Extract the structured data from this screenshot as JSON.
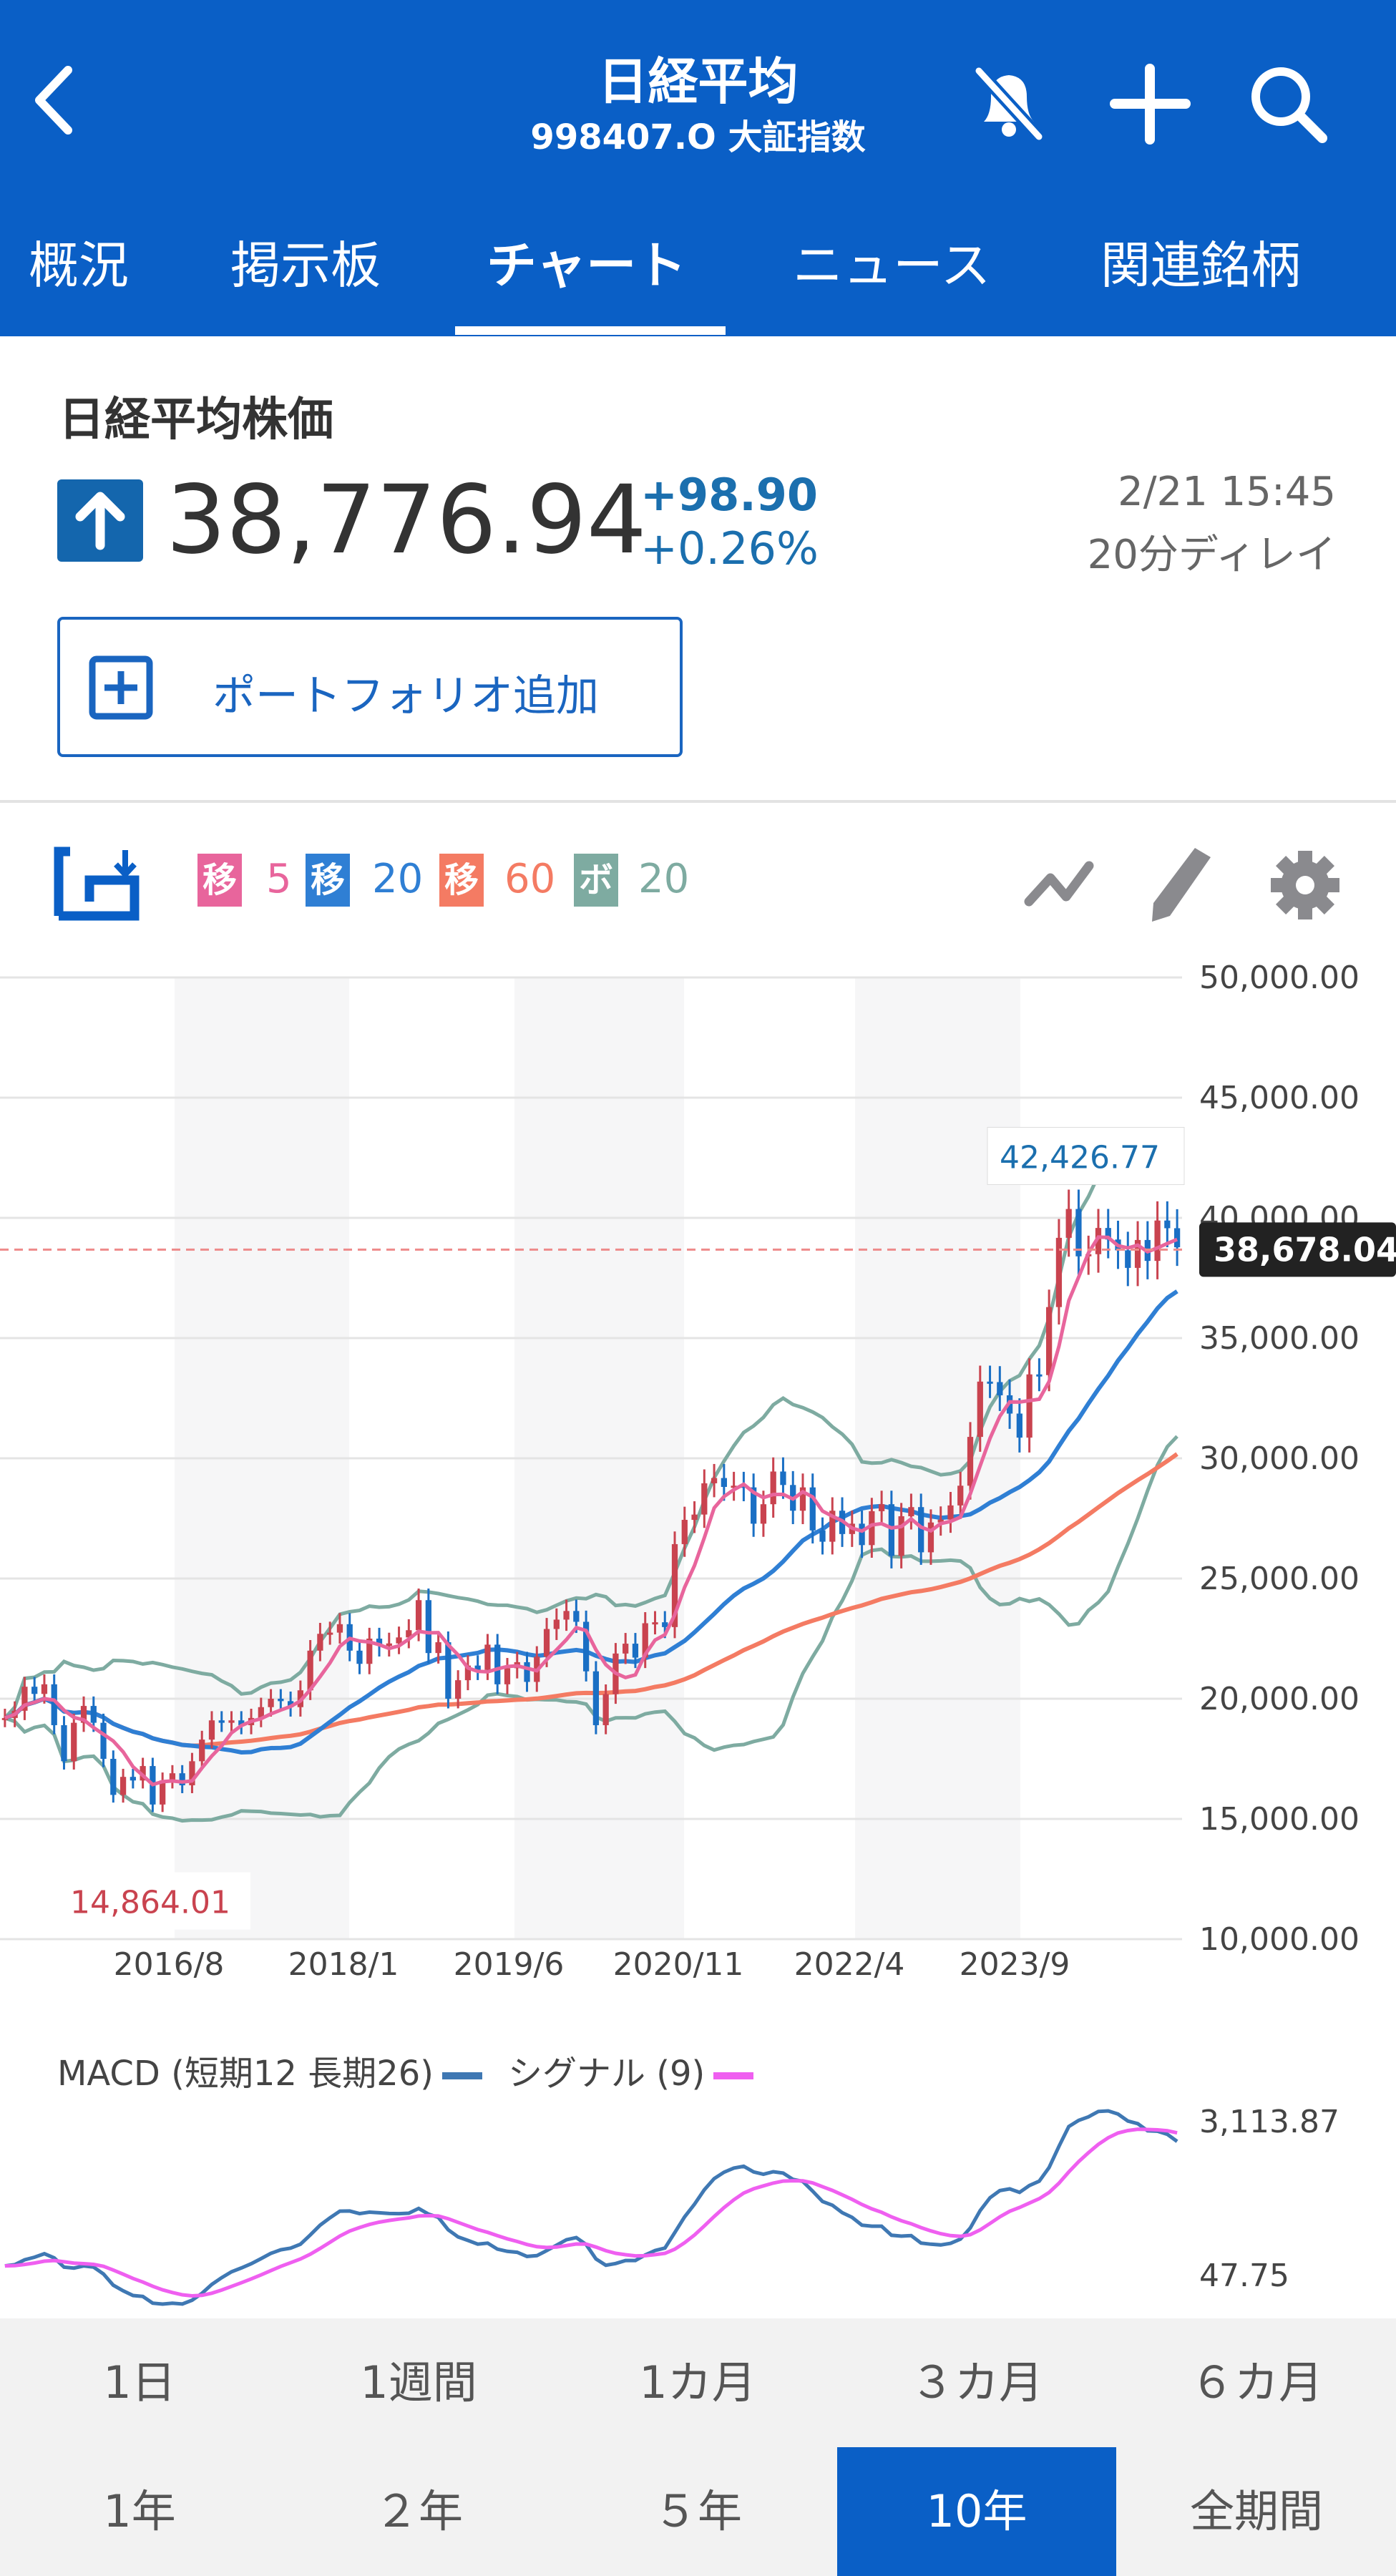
{
  "header": {
    "title": "日経平均",
    "subtitle": "998407.O 大証指数",
    "icons": [
      "back-chevron-icon",
      "bell-off-icon",
      "plus-icon",
      "search-icon"
    ]
  },
  "tabs": [
    {
      "label": "概況"
    },
    {
      "label": "掲示板"
    },
    {
      "label": "チャート",
      "active": true
    },
    {
      "label": "ニュース"
    },
    {
      "label": "関連銘柄"
    }
  ],
  "quote": {
    "name": "日経平均株価",
    "direction": "up",
    "price": "38,776.94",
    "change": "+98.90",
    "change_pct": "+0.26%",
    "date": "2/21 15:45",
    "delay": "20分ディレイ"
  },
  "portfolio_button": {
    "label": "ポートフォリオ追加"
  },
  "indicators": [
    {
      "badge": "移",
      "value": "5",
      "color": "#e8659c"
    },
    {
      "badge": "移",
      "value": "20",
      "color": "#2f7fd4"
    },
    {
      "badge": "移",
      "value": "60",
      "color": "#f47b63"
    },
    {
      "badge": "ボ",
      "value": "20",
      "color": "#7eaba1"
    }
  ],
  "colors": {
    "header": "#0a5fc6",
    "up_candle": "#c9434f",
    "down_candle": "#1a6fc4",
    "bollinger": "#7eaba1",
    "macd": "#3f78b3",
    "signal": "#ef5ff0"
  },
  "chart_data": {
    "type": "candlestick",
    "x_ticks": [
      "2016/8",
      "2018/1",
      "2019/6",
      "2020/11",
      "2022/4",
      "2023/9"
    ],
    "y_ticks": [
      "50,000.00",
      "45,000.00",
      "40,000.00",
      "35,000.00",
      "30,000.00",
      "25,000.00",
      "20,000.00",
      "15,000.00",
      "10,000.00"
    ],
    "ylim": [
      10000,
      50000
    ],
    "x_range": [
      "2015/3",
      "2025/2"
    ],
    "closes": [
      19200,
      19500,
      20500,
      20200,
      20600,
      18900,
      17400,
      19000,
      19700,
      19000,
      17500,
      16000,
      16750,
      16600,
      17200,
      15600,
      16600,
      16900,
      16400,
      17400,
      18300,
      19100,
      19000,
      19100,
      18900,
      19200,
      19650,
      20000,
      19900,
      19650,
      20350,
      22000,
      22700,
      22750,
      23100,
      22000,
      21450,
      22500,
      22200,
      22300,
      22550,
      22850,
      24100,
      21900,
      22350,
      20000,
      20770,
      21380,
      21200,
      22250,
      20600,
      21270,
      21520,
      20700,
      21750,
      22900,
      23290,
      23650,
      23200,
      21140,
      18900,
      20190,
      21880,
      22290,
      21710,
      23140,
      23180,
      22980,
      26430,
      27440,
      27660,
      28960,
      29180,
      28810,
      28860,
      28790,
      27280,
      28090,
      29450,
      28890,
      27820,
      28790,
      27000,
      26530,
      27820,
      26850,
      27280,
      26390,
      27800,
      28090,
      25940,
      27590,
      27970,
      26090,
      27330,
      27450,
      28040,
      28860,
      30890,
      33190,
      33170,
      32620,
      31860,
      30860,
      33490,
      33460,
      36290,
      39170,
      40370,
      38400,
      38490,
      39580,
      39100,
      38650,
      37920,
      39080,
      38210,
      39890,
      39570,
      38776.94
    ],
    "moving_averages": [
      5,
      20,
      60
    ],
    "bollinger_period": 20,
    "high_label": "42,426.77",
    "high_value": 42426.77,
    "low_label": "14,864.01",
    "low_value": 14864.01,
    "current_label": "38,678.04",
    "current_value": 38678.04
  },
  "macd": {
    "legend_macd": "MACD (短期12 長期26)",
    "legend_signal": "シグナル (9)",
    "axis_top": "3,113.87",
    "axis_bottom": "47.75"
  },
  "periods": [
    {
      "label": "1日"
    },
    {
      "label": "1週間"
    },
    {
      "label": "1カ月"
    },
    {
      "label": "３カ月"
    },
    {
      "label": "６カ月"
    },
    {
      "label": "1年"
    },
    {
      "label": "２年"
    },
    {
      "label": "５年"
    },
    {
      "label": "10年",
      "active": true
    },
    {
      "label": "全期間"
    }
  ]
}
